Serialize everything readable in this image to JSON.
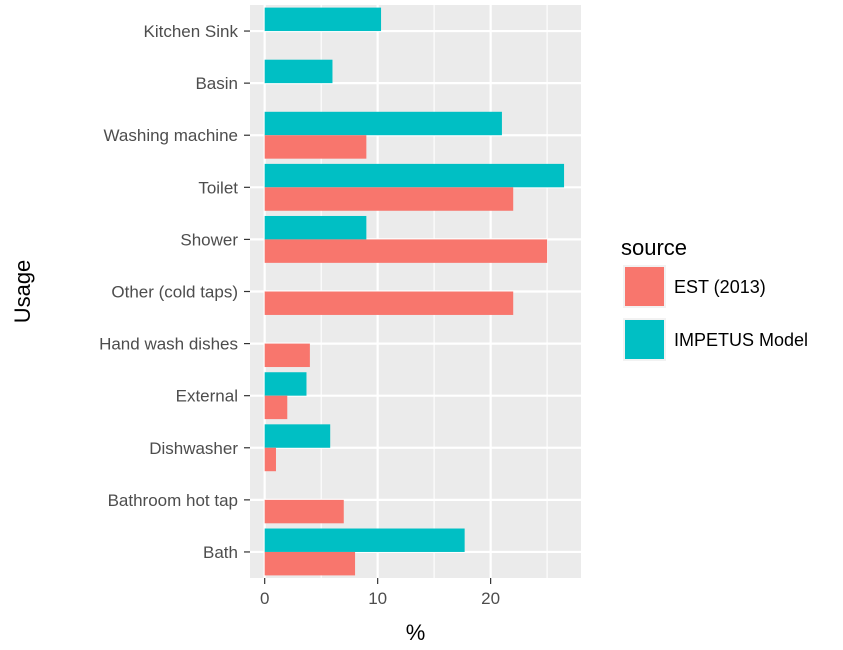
{
  "chart_data": {
    "type": "bar",
    "orientation": "horizontal",
    "ylabel": "Usage",
    "xlabel": "%",
    "categories": [
      "Kitchen Sink",
      "Basin",
      "Washing machine",
      "Toilet",
      "Shower",
      "Other (cold taps)",
      "Hand wash dishes",
      "External",
      "Dishwasher",
      "Bathroom hot tap",
      "Bath"
    ],
    "series": [
      {
        "name": "EST (2013)",
        "color": "#F8766D",
        "values": [
          null,
          null,
          9,
          22,
          25,
          22,
          4,
          2,
          1,
          7,
          8
        ]
      },
      {
        "name": "IMPETUS Model",
        "color": "#00BFC4",
        "values": [
          10.3,
          6,
          21,
          26.5,
          9,
          null,
          null,
          3.7,
          5.8,
          null,
          17.7
        ]
      }
    ],
    "xlim": [
      -1.3,
      28
    ],
    "xticks": [
      0,
      10,
      20
    ],
    "xtick_labels": [
      "0",
      "10",
      "20"
    ],
    "grid": true,
    "panel_background": "#EBEBEB",
    "legend": {
      "title": "source",
      "position": "right"
    }
  }
}
